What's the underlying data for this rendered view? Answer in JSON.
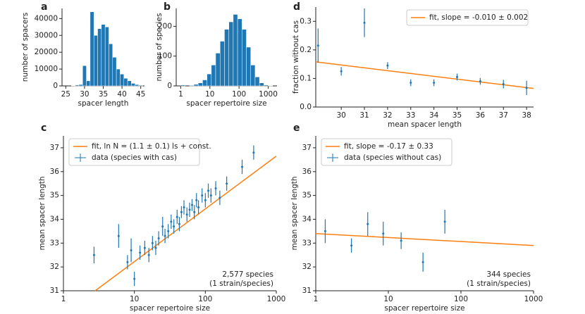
{
  "chart_data": [
    {
      "type": "histogram",
      "panel": "a",
      "xlabel": "spacer length",
      "ylabel": "number of spacers",
      "color": "#1f77b4",
      "bins": [
        26.5,
        27.5,
        28.5,
        29.5,
        30.5,
        31.5,
        32.5,
        33.5,
        34.5,
        35.5,
        36.5,
        37.5,
        38.5,
        39.5,
        40.5,
        41.5,
        42.5,
        43.5,
        44.5,
        45.5
      ],
      "values": [
        200,
        500,
        800,
        12000,
        3000,
        44000,
        30000,
        34000,
        36500,
        35000,
        25000,
        17000,
        10000,
        7000,
        4500,
        3000,
        1500,
        800,
        400
      ],
      "xlim": [
        24,
        46
      ],
      "xticks": [
        25,
        30,
        35,
        40,
        45
      ],
      "ylim": [
        0,
        46000
      ],
      "yticks": [
        0,
        10000,
        20000,
        30000,
        40000
      ]
    },
    {
      "type": "histogram",
      "panel": "b",
      "xlabel": "spacer repertoire size",
      "ylabel": "number of species",
      "color": "#1f77b4",
      "xlog": true,
      "bins": [
        1,
        1.41,
        2,
        2.82,
        3.98,
        5.62,
        7.94,
        11.2,
        15.8,
        22.4,
        31.6,
        44.7,
        63.1,
        89.1,
        126,
        178,
        251,
        355,
        501,
        708,
        1000,
        1413
      ],
      "values": [
        3,
        0,
        2,
        5,
        10,
        20,
        40,
        70,
        110,
        150,
        190,
        215,
        240,
        225,
        190,
        130,
        70,
        30,
        10,
        3,
        1
      ],
      "xlim": [
        0.7,
        2000
      ],
      "xticks": [
        1,
        10,
        100,
        1000
      ],
      "ylim": [
        0,
        260
      ],
      "yticks": [
        0,
        100,
        200
      ]
    },
    {
      "type": "errorbar",
      "panel": "d",
      "xlabel": "mean spacer length",
      "ylabel": "fraction without cas",
      "legend": "upper right",
      "xlim": [
        28.9,
        38.3
      ],
      "xticks": [
        30,
        31,
        32,
        33,
        34,
        35,
        36,
        37,
        38
      ],
      "ylim": [
        0,
        0.35
      ],
      "yticks": [
        {
          "value": 0,
          "label": "0.0"
        },
        0.1,
        0.2,
        0.3
      ],
      "series": [
        {
          "name": "fit, slope = -0.010 ± 0.002",
          "color": "#ff7f0e",
          "x": [
            28.9,
            38.3
          ],
          "values": [
            0.158,
            0.065
          ]
        },
        {
          "color": "#1f77b4",
          "x": [
            29,
            30,
            31,
            32,
            33,
            34,
            35,
            36,
            37,
            38
          ],
          "values": [
            0.215,
            0.125,
            0.295,
            0.145,
            0.085,
            0.085,
            0.105,
            0.09,
            0.08,
            0.067
          ],
          "errors": [
            0.06,
            0.015,
            0.05,
            0.012,
            0.012,
            0.012,
            0.012,
            0.012,
            0.015,
            0.025
          ]
        }
      ]
    },
    {
      "type": "errorbar",
      "panel": "c",
      "xlabel": "spacer repertoire size",
      "ylabel": "mean spacer length",
      "xlog": true,
      "legend": "upper left",
      "annotation": [
        "2,577 species",
        "(1 strain/species)"
      ],
      "xlim": [
        1,
        1000
      ],
      "xticks": [
        1,
        10,
        100,
        1000
      ],
      "ylim": [
        31,
        37.5
      ],
      "yticks": [
        31,
        32,
        33,
        34,
        35,
        36,
        37
      ],
      "series": [
        {
          "name": "fit, ln N = (1.1 ± 0.1) ls + const.",
          "color": "#ff7f0e",
          "x": [
            2.8,
            1000
          ],
          "values": [
            31,
            36.65
          ]
        },
        {
          "name": "data (species with cas)",
          "color": "#1f77b4",
          "x": [
            2.7,
            6,
            8,
            10,
            9,
            12,
            14,
            16,
            18,
            20,
            22,
            25,
            27,
            30,
            33,
            36,
            40,
            43,
            46,
            50,
            55,
            60,
            65,
            70,
            75,
            80,
            90,
            100,
            110,
            120,
            140,
            160,
            200,
            330,
            480
          ],
          "values": [
            32.5,
            33.3,
            32.2,
            31.5,
            32.7,
            32.6,
            32.8,
            32.5,
            33,
            32.8,
            33.2,
            33.7,
            33.3,
            33.5,
            33.9,
            33.7,
            34.1,
            33.8,
            34.3,
            34.5,
            34.2,
            34.4,
            34.6,
            34.3,
            34.8,
            34.5,
            35,
            34.8,
            35.2,
            35,
            35.3,
            34.9,
            35.5,
            36.2,
            36.8
          ],
          "errors": [
            0.35,
            0.5,
            0.3,
            0.3,
            0.5,
            0.3,
            0.3,
            0.3,
            0.3,
            0.3,
            0.3,
            0.4,
            0.3,
            0.3,
            0.3,
            0.3,
            0.3,
            0.3,
            0.25,
            0.3,
            0.3,
            0.3,
            0.25,
            0.3,
            0.3,
            0.3,
            0.3,
            0.3,
            0.3,
            0.3,
            0.3,
            0.3,
            0.3,
            0.3,
            0.3
          ]
        }
      ]
    },
    {
      "type": "errorbar",
      "panel": "e",
      "xlabel": "spacer repertoire size",
      "ylabel": "mean spacer length",
      "xlog": true,
      "legend": "upper left",
      "annotation": [
        "344 species",
        "(1 strain/species)"
      ],
      "xlim": [
        1,
        1000
      ],
      "xticks": [
        1,
        10,
        100,
        1000
      ],
      "ylim": [
        31,
        37.5
      ],
      "yticks": [
        31,
        32,
        33,
        34,
        35,
        36,
        37
      ],
      "series": [
        {
          "name": "fit, slope = -0.17 ± 0.33",
          "color": "#ff7f0e",
          "x": [
            1,
            1000
          ],
          "values": [
            33.4,
            32.9
          ]
        },
        {
          "name": "data (species without cas)",
          "color": "#1f77b4",
          "x": [
            1.35,
            3.1,
            5.2,
            8.5,
            15,
            30,
            60
          ],
          "values": [
            33.5,
            32.9,
            33.8,
            33.4,
            33.1,
            32.2,
            33.9
          ],
          "errors": [
            0.5,
            0.3,
            0.5,
            0.5,
            0.35,
            0.4,
            0.5
          ]
        }
      ]
    }
  ]
}
